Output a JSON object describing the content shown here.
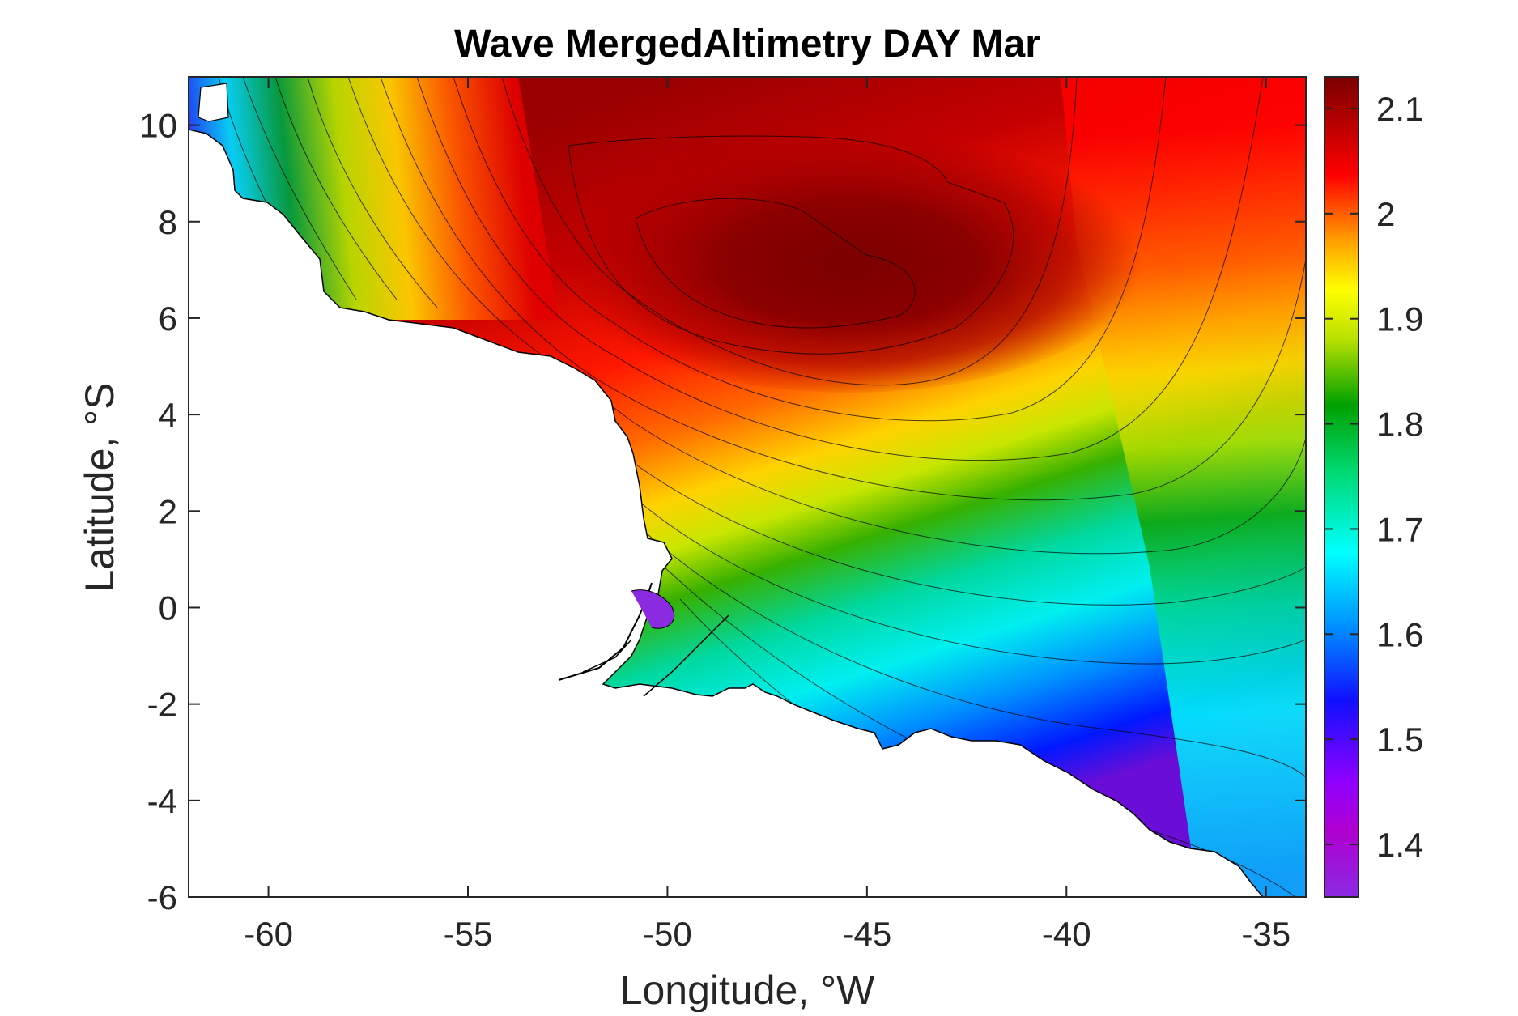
{
  "chart_data": {
    "type": "heatmap",
    "subtype": "filled-contour-map",
    "title": "Wave MergedAltimetry DAY Mar",
    "xlabel": "Longitude, °W",
    "ylabel": "Latitude, °S",
    "xlim": [
      -62,
      -34
    ],
    "ylim": [
      -6,
      11
    ],
    "x_ticks": [
      -60,
      -55,
      -50,
      -45,
      -40,
      -35
    ],
    "y_ticks": [
      -6,
      -4,
      -2,
      0,
      2,
      4,
      6,
      8,
      10
    ],
    "colorbar": {
      "range": [
        1.35,
        2.13
      ],
      "ticks": [
        1.4,
        1.5,
        1.6,
        1.7,
        1.8,
        1.9,
        2,
        2.1
      ],
      "colormap": "jet-like",
      "colors": [
        "#8a2be2",
        "#0000ff",
        "#00bfff",
        "#00ffff",
        "#00b050",
        "#c8e600",
        "#ffff00",
        "#ffa500",
        "#ff0000",
        "#7f0000"
      ]
    },
    "features": {
      "maximum": {
        "lon": -47.5,
        "lat": 7.5,
        "value": 2.13
      },
      "minimum_region": "Amazon river mouth (~-50 lon, 0 lat), value ~1.4",
      "land_mask": "South American coastline, white"
    },
    "grid": false,
    "legend": "colorbar-right"
  }
}
